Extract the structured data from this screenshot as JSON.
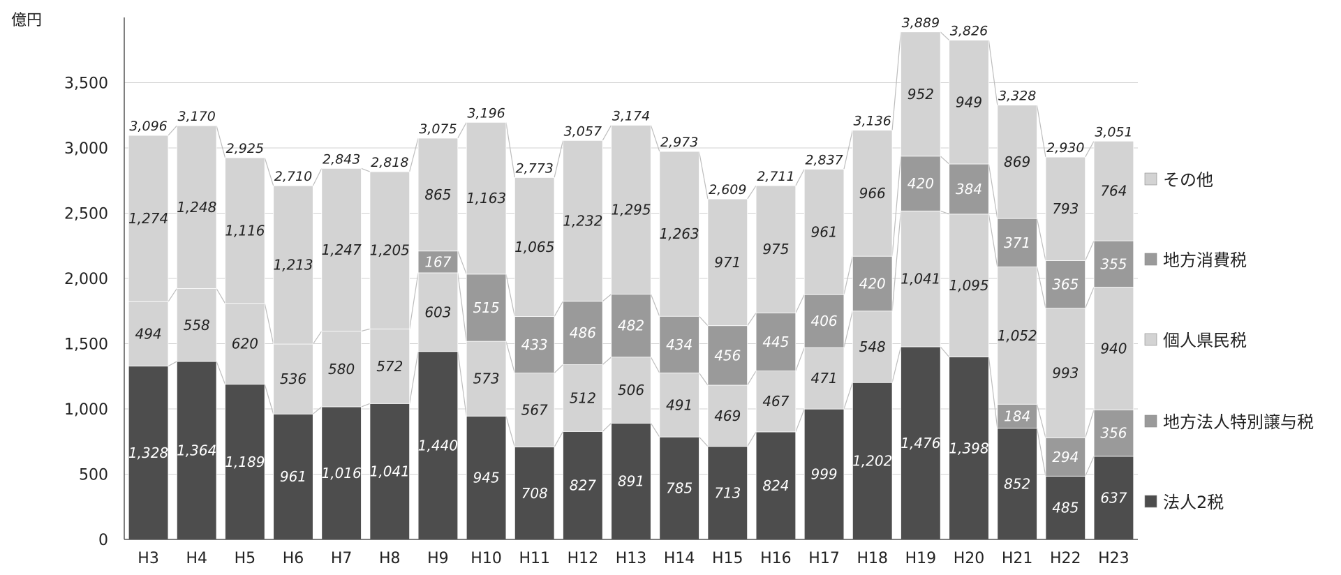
{
  "chart_data": {
    "type": "bar",
    "stacked": true,
    "unit_label": "億円",
    "categories": [
      "H3",
      "H4",
      "H5",
      "H6",
      "H7",
      "H8",
      "H9",
      "H10",
      "H11",
      "H12",
      "H13",
      "H14",
      "H15",
      "H16",
      "H17",
      "H18",
      "H19",
      "H20",
      "H21",
      "H22",
      "H23"
    ],
    "series": [
      {
        "name": "法人2税",
        "color": "#4d4d4d",
        "label_color": "#ffffff",
        "values": [
          1328,
          1364,
          1189,
          961,
          1016,
          1041,
          1440,
          945,
          708,
          827,
          891,
          785,
          713,
          824,
          999,
          1202,
          1476,
          1398,
          852,
          485,
          637
        ]
      },
      {
        "name": "地方法人特別譲与税",
        "color": "#9a9a9a",
        "label_color": "#ffffff",
        "values": [
          null,
          null,
          null,
          null,
          null,
          null,
          null,
          null,
          null,
          null,
          null,
          null,
          null,
          null,
          null,
          null,
          null,
          null,
          184,
          294,
          356
        ]
      },
      {
        "name": "個人県民税",
        "color": "#d3d3d3",
        "label_color": "#222222",
        "values": [
          494,
          558,
          620,
          536,
          580,
          572,
          603,
          573,
          567,
          512,
          506,
          491,
          469,
          467,
          471,
          548,
          1041,
          1095,
          1052,
          993,
          940
        ]
      },
      {
        "name": "地方消費税",
        "color": "#9a9a9a",
        "label_color": "#ffffff",
        "values": [
          null,
          null,
          null,
          null,
          null,
          null,
          167,
          515,
          433,
          486,
          482,
          434,
          456,
          445,
          406,
          420,
          420,
          384,
          371,
          365,
          355
        ]
      },
      {
        "name": "その他",
        "color": "#d3d3d3",
        "label_color": "#222222",
        "values": [
          1274,
          1248,
          1116,
          1213,
          1247,
          1205,
          865,
          1163,
          1065,
          1232,
          1295,
          1263,
          971,
          975,
          961,
          966,
          952,
          949,
          869,
          793,
          764
        ]
      }
    ],
    "totals": [
      "3,096",
      "3,170",
      "2,925",
      "2,710",
      "2,843",
      "2,818",
      "3,075",
      "3,196",
      "2,773",
      "3,057",
      "3,174",
      "2,973",
      "2,609",
      "2,711",
      "2,837",
      "3,136",
      "3,889",
      "3,826",
      "3,328",
      "2,930",
      "3,051"
    ],
    "y_ticks": [
      "0",
      "500",
      "1,000",
      "1,500",
      "2,000",
      "2,500",
      "3,000",
      "3,500"
    ],
    "ylim": [
      0,
      4000
    ],
    "grid": true,
    "legend_position": "right",
    "legend_order": [
      "その他",
      "地方消費税",
      "個人県民税",
      "地方法人特別譲与税",
      "法人2税"
    ]
  }
}
